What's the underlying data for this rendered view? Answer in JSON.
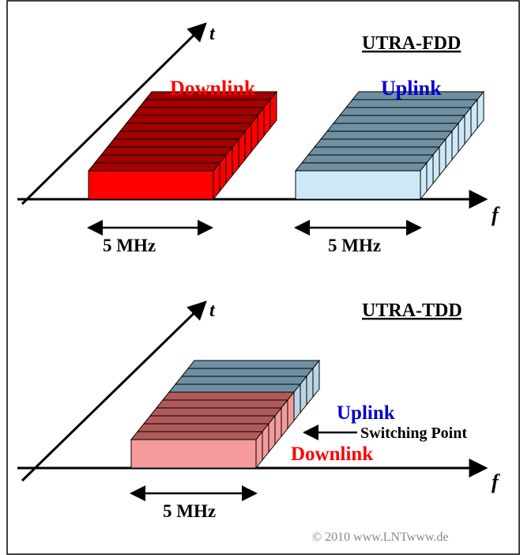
{
  "fdd": {
    "title": "UTRA-FDD",
    "axis_t": "t",
    "axis_f": "f",
    "downlink_label": "Downlink",
    "uplink_label": "Uplink",
    "downlink_bandwidth": "5 MHz",
    "uplink_bandwidth": "5 MHz"
  },
  "tdd": {
    "title": "UTRA-TDD",
    "axis_t": "t",
    "axis_f": "f",
    "uplink_label": "Uplink",
    "switching_label": "Switching Point",
    "downlink_label": "Downlink",
    "bandwidth": "5 MHz"
  },
  "copyright": "© 2010 www.LNTwww.de",
  "colors": {
    "downlink_fdd": "#ff0000",
    "downlink_fdd_dark": "#a30000",
    "uplink_fdd": "#cde9f7",
    "uplink_fdd_dark": "#6f8fa3",
    "downlink_tdd": "#f59a9a",
    "downlink_tdd_dark": "#b15a5a",
    "uplink_tdd": "#bcd4e6",
    "uplink_tdd_dark": "#6f8fa3",
    "downlink_text": "#ff0000",
    "uplink_text": "#0000cc",
    "axis": "#000000"
  }
}
